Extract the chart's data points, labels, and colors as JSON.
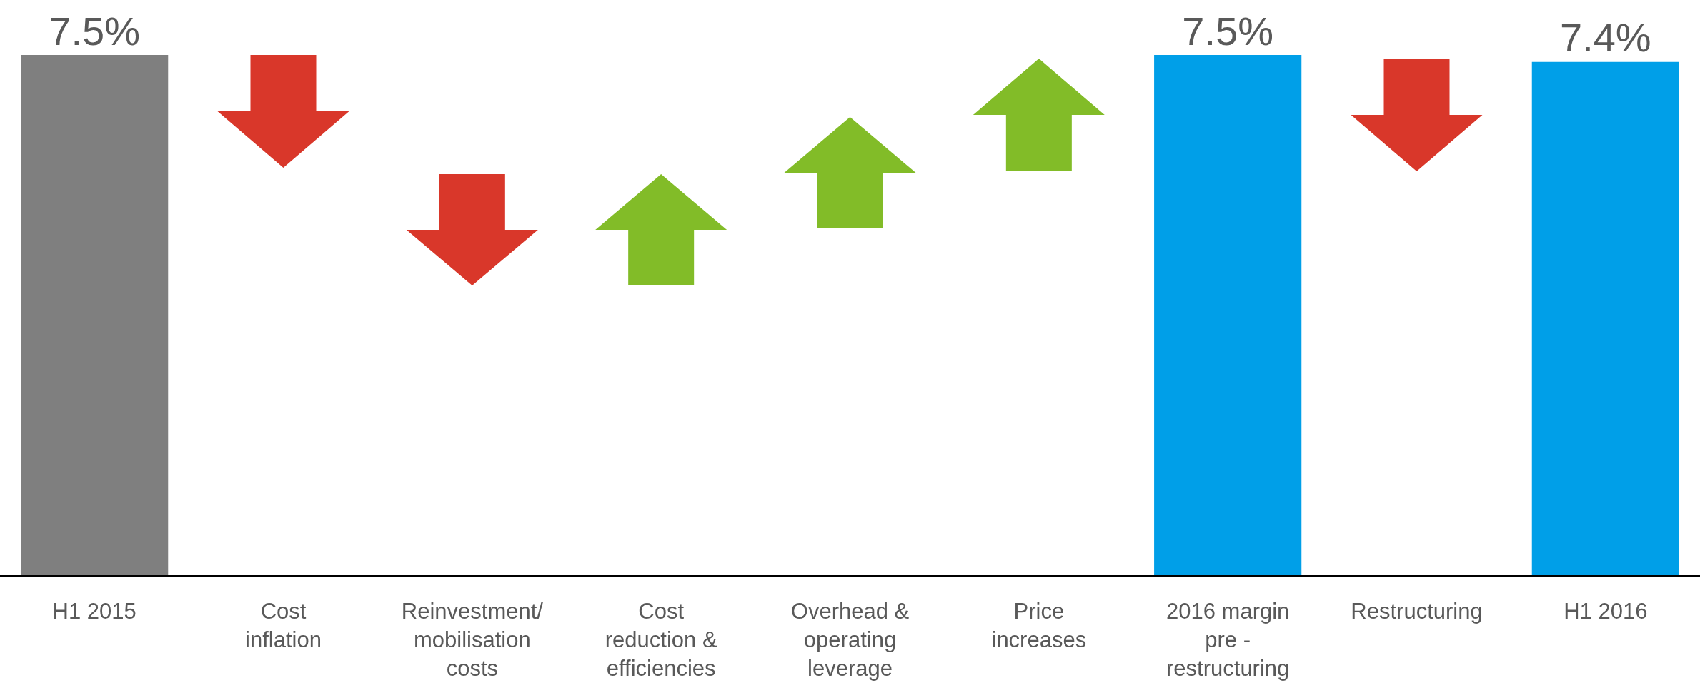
{
  "chart_data": {
    "type": "bar",
    "tick_labels": "x",
    "categories": [
      "H1 2015",
      "Cost\ninflation",
      "Reinvestment/\nmobilisation\ncosts",
      "Cost\nreduction &\nefficiencies",
      "Overhead &\noperating\nleverage",
      "Price\nincreases",
      "2016 margin\npre -\nrestructuring",
      "Restructuring",
      "H1 2016"
    ],
    "values": [
      7.5,
      null,
      null,
      null,
      null,
      null,
      7.5,
      null,
      7.4
    ],
    "colors": [
      "#7f7f7f",
      null,
      null,
      null,
      null,
      null,
      "#009fe8",
      null,
      "#009fe8"
    ],
    "value_labels": [
      "7.5%",
      null,
      null,
      null,
      null,
      null,
      "7.5%",
      null,
      "7.4%"
    ]
  }
}
